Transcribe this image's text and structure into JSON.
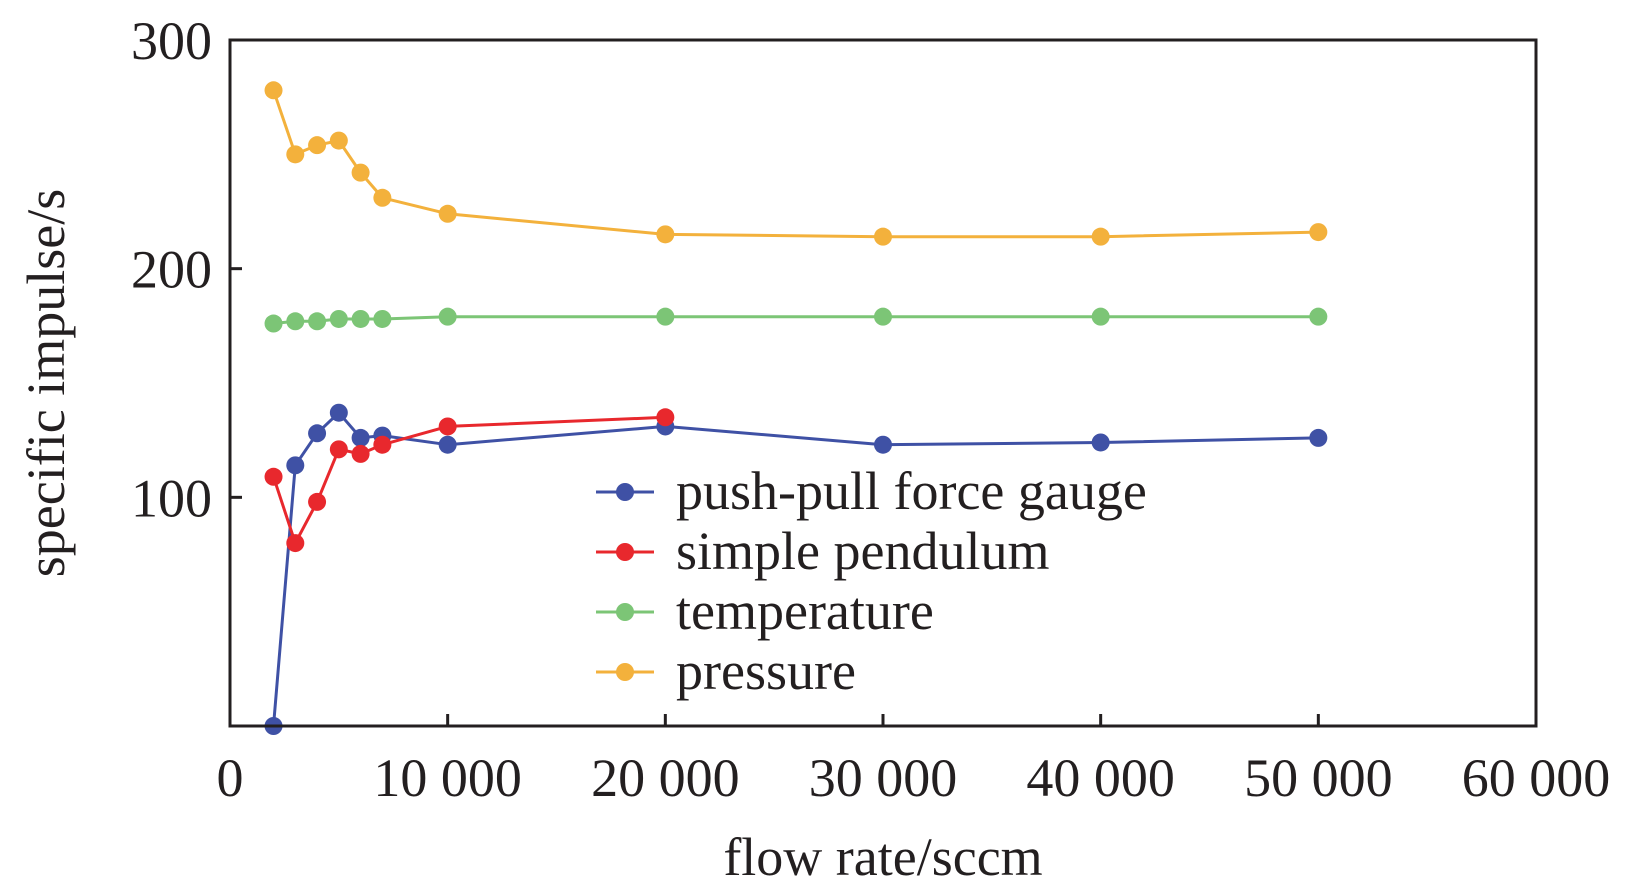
{
  "chart_data": {
    "type": "line",
    "title": "",
    "xlabel": "flow rate/sccm",
    "ylabel": "specific impulse/s",
    "xlim": [
      0,
      60000
    ],
    "ylim": [
      0,
      300
    ],
    "x_ticks": [
      0,
      10000,
      20000,
      30000,
      40000,
      50000,
      60000
    ],
    "x_tick_labels": [
      "0",
      "10 000",
      "20 000",
      "30 000",
      "40 000",
      "50 000",
      "60 000"
    ],
    "y_ticks": [
      100,
      200,
      300
    ],
    "y_tick_labels": [
      "100",
      "200",
      "300"
    ],
    "grid": false,
    "legend_position": "inside-lower-center",
    "series": [
      {
        "name": "push-pull force gauge",
        "color": "#3f51a5",
        "x": [
          2000,
          3000,
          4000,
          5000,
          6000,
          7000,
          10000,
          20000,
          30000,
          40000,
          50000
        ],
        "y": [
          0,
          114,
          128,
          137,
          126,
          127,
          123,
          131,
          123,
          124,
          126
        ]
      },
      {
        "name": "simple pendulum",
        "color": "#e8282d",
        "x": [
          2000,
          3000,
          4000,
          5000,
          6000,
          7000,
          10000,
          20000
        ],
        "y": [
          109,
          80,
          98,
          121,
          119,
          123,
          131,
          135
        ]
      },
      {
        "name": "temperature",
        "color": "#7cc576",
        "x": [
          2000,
          3000,
          4000,
          5000,
          6000,
          7000,
          10000,
          20000,
          30000,
          40000,
          50000
        ],
        "y": [
          176,
          177,
          177,
          178,
          178,
          178,
          179,
          179,
          179,
          179,
          179
        ]
      },
      {
        "name": "pressure",
        "color": "#f3b13c",
        "x": [
          2000,
          3000,
          4000,
          5000,
          6000,
          7000,
          10000,
          20000,
          30000,
          40000,
          50000
        ],
        "y": [
          278,
          250,
          254,
          256,
          242,
          231,
          224,
          215,
          214,
          214,
          216
        ]
      }
    ]
  }
}
